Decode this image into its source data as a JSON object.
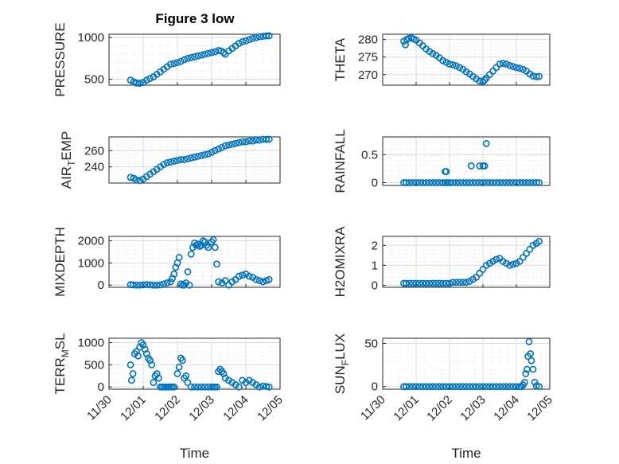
{
  "figure_title": "Figure 3 low",
  "colors": {
    "marker": "#0072BD",
    "grid": "#dcdcdc",
    "axis": "#262626"
  },
  "chart_data": [
    {
      "type": "scatter",
      "id": "pressure",
      "ylabel": "PRESSURE",
      "xlabel": "",
      "ylim": [
        430,
        1040
      ],
      "yticks": [
        500,
        1000
      ],
      "ytick_labels": [
        "500",
        "1000"
      ],
      "x": [
        0.63,
        0.72,
        0.8,
        0.9,
        1.0,
        1.1,
        1.2,
        1.3,
        1.4,
        1.5,
        1.6,
        1.7,
        1.8,
        1.9,
        2.0,
        2.1,
        2.2,
        2.3,
        2.4,
        2.5,
        2.6,
        2.7,
        2.8,
        2.9,
        3.0,
        3.1,
        3.2,
        3.28,
        3.35,
        3.4,
        3.5,
        3.6,
        3.7,
        3.8,
        3.9,
        4.0,
        4.1,
        4.2,
        4.3,
        4.4,
        4.5,
        4.6,
        4.68
      ],
      "y": [
        490,
        470,
        455,
        452,
        462,
        490,
        510,
        530,
        560,
        590,
        620,
        650,
        680,
        690,
        700,
        715,
        735,
        750,
        760,
        770,
        780,
        790,
        800,
        810,
        820,
        830,
        845,
        840,
        820,
        800,
        840,
        870,
        900,
        930,
        950,
        960,
        975,
        990,
        1000,
        1010,
        1015,
        1020,
        1022
      ]
    },
    {
      "type": "scatter",
      "id": "theta",
      "ylabel": "THETA",
      "xlabel": "",
      "ylim": [
        267,
        281.5
      ],
      "yticks": [
        270,
        275,
        280
      ],
      "ytick_labels": [
        "270",
        "275",
        "280"
      ],
      "x": [
        0.63,
        0.68,
        0.72,
        0.78,
        0.85,
        0.92,
        1.0,
        1.1,
        1.2,
        1.3,
        1.4,
        1.5,
        1.6,
        1.7,
        1.8,
        1.9,
        2.0,
        2.1,
        2.2,
        2.3,
        2.4,
        2.5,
        2.6,
        2.7,
        2.8,
        2.9,
        3.0,
        3.05,
        3.1,
        3.2,
        3.3,
        3.4,
        3.5,
        3.6,
        3.7,
        3.8,
        3.9,
        4.0,
        4.1,
        4.2,
        4.3,
        4.4,
        4.5,
        4.6,
        4.68
      ],
      "y": [
        279.5,
        278.5,
        280.0,
        280.3,
        280.5,
        280.2,
        279.8,
        279.0,
        278.2,
        277.3,
        276.6,
        276.0,
        275.5,
        274.8,
        274.0,
        273.5,
        273.0,
        272.8,
        272.5,
        272.0,
        271.5,
        270.8,
        270.2,
        269.5,
        268.8,
        268.2,
        268.0,
        268.5,
        269.0,
        270.0,
        271.0,
        272.0,
        273.0,
        273.2,
        273.0,
        272.6,
        272.3,
        272.0,
        271.8,
        271.5,
        271.0,
        270.2,
        269.6,
        269.4,
        269.5
      ]
    },
    {
      "type": "scatter",
      "id": "airtemp",
      "ylabel": "AIR_TEMP",
      "xlabel": "",
      "ylim": [
        220,
        277
      ],
      "yticks": [
        240,
        260
      ],
      "ytick_labels": [
        "240",
        "260"
      ],
      "x": [
        0.63,
        0.72,
        0.8,
        0.9,
        1.0,
        1.1,
        1.2,
        1.3,
        1.4,
        1.5,
        1.6,
        1.7,
        1.8,
        1.9,
        2.0,
        2.1,
        2.2,
        2.3,
        2.4,
        2.5,
        2.6,
        2.7,
        2.8,
        2.9,
        3.0,
        3.1,
        3.2,
        3.3,
        3.4,
        3.5,
        3.6,
        3.7,
        3.8,
        3.9,
        4.0,
        4.1,
        4.2,
        4.3,
        4.4,
        4.5,
        4.6,
        4.68
      ],
      "y": [
        227,
        226,
        224,
        223,
        225,
        228,
        231,
        234,
        237,
        240,
        243,
        245,
        246,
        247,
        248,
        249,
        249,
        250,
        251,
        252,
        253,
        254,
        255,
        256,
        258,
        260,
        262,
        264,
        266,
        267,
        268,
        269,
        270,
        271,
        271,
        272,
        272,
        273,
        273,
        274,
        274,
        274
      ]
    },
    {
      "type": "scatter",
      "id": "rainfall",
      "ylabel": "RAINFALL",
      "xlabel": "",
      "ylim": [
        -0.05,
        0.82
      ],
      "yticks": [
        0,
        0.5
      ],
      "ytick_labels": [
        "0",
        "0.5"
      ],
      "x": [
        0.63,
        0.7,
        0.8,
        0.9,
        1.0,
        1.1,
        1.2,
        1.3,
        1.4,
        1.5,
        1.6,
        1.7,
        1.8,
        1.88,
        1.93,
        2.0,
        2.1,
        2.2,
        2.3,
        2.4,
        2.5,
        2.6,
        2.7,
        2.8,
        2.9,
        3.0,
        3.1,
        3.2,
        3.3,
        3.4,
        3.5,
        3.6,
        3.7,
        3.8,
        3.9,
        4.0,
        4.1,
        4.2,
        4.3,
        4.4,
        4.5,
        4.6,
        4.68,
        1.87,
        1.9,
        2.65,
        2.9,
        3.0,
        3.05,
        3.1
      ],
      "y": [
        0,
        0,
        0,
        0,
        0,
        0,
        0,
        0,
        0,
        0,
        0,
        0,
        0,
        0,
        0,
        0,
        0,
        0,
        0,
        0,
        0,
        0,
        0,
        0,
        0,
        0,
        0,
        0,
        0,
        0,
        0,
        0,
        0,
        0,
        0,
        0,
        0,
        0,
        0,
        0,
        0,
        0,
        0,
        0.2,
        0.2,
        0.3,
        0.3,
        0.3,
        0.3,
        0.7
      ]
    },
    {
      "type": "scatter",
      "id": "mixdepth",
      "ylabel": "MIXDEPTH",
      "xlabel": "",
      "ylim": [
        -100,
        2200
      ],
      "yticks": [
        0,
        1000,
        2000
      ],
      "ytick_labels": [
        "0",
        "1000",
        "2000"
      ],
      "x": [
        0.63,
        0.7,
        0.8,
        0.9,
        1.0,
        1.1,
        1.2,
        1.3,
        1.4,
        1.5,
        1.6,
        1.7,
        1.8,
        1.85,
        1.9,
        1.95,
        2.0,
        2.05,
        2.1,
        2.15,
        2.2,
        2.25,
        2.3,
        2.35,
        2.4,
        2.45,
        2.5,
        2.55,
        2.6,
        2.65,
        2.7,
        2.75,
        2.8,
        2.85,
        2.9,
        3.0,
        3.05,
        3.1,
        3.15,
        3.2,
        3.3,
        3.4,
        3.5,
        3.6,
        3.7,
        3.8,
        3.9,
        4.0,
        4.1,
        4.2,
        4.3,
        4.4,
        4.5,
        4.6,
        4.68
      ],
      "y": [
        20,
        10,
        0,
        0,
        10,
        20,
        10,
        0,
        0,
        10,
        50,
        100,
        150,
        300,
        500,
        800,
        1000,
        1250,
        50,
        0,
        0,
        100,
        600,
        0,
        1400,
        1700,
        1900,
        1800,
        1850,
        1750,
        1800,
        2000,
        1950,
        1800,
        1700,
        1950,
        2050,
        1700,
        950,
        150,
        100,
        200,
        0,
        150,
        250,
        400,
        450,
        500,
        400,
        350,
        250,
        200,
        150,
        200,
        250
      ]
    },
    {
      "type": "scatter",
      "id": "h2omixra",
      "ylabel": "H2OMIXRA",
      "xlabel": "",
      "ylim": [
        -0.1,
        2.45
      ],
      "yticks": [
        0,
        1,
        2
      ],
      "ytick_labels": [
        "0",
        "1",
        "2"
      ],
      "x": [
        0.63,
        0.7,
        0.8,
        0.9,
        1.0,
        1.1,
        1.2,
        1.3,
        1.4,
        1.5,
        1.6,
        1.7,
        1.8,
        1.9,
        2.0,
        2.1,
        2.2,
        2.3,
        2.4,
        2.5,
        2.6,
        2.7,
        2.8,
        2.9,
        3.0,
        3.1,
        3.2,
        3.3,
        3.4,
        3.5,
        3.6,
        3.7,
        3.8,
        3.9,
        4.0,
        4.1,
        4.2,
        4.3,
        4.4,
        4.5,
        4.6,
        4.68
      ],
      "y": [
        0.1,
        0.1,
        0.1,
        0.1,
        0.1,
        0.1,
        0.1,
        0.1,
        0.1,
        0.1,
        0.1,
        0.1,
        0.1,
        0.1,
        0.1,
        0.15,
        0.15,
        0.15,
        0.15,
        0.15,
        0.2,
        0.3,
        0.4,
        0.6,
        0.8,
        1.0,
        1.1,
        1.2,
        1.3,
        1.35,
        1.2,
        1.1,
        1.0,
        1.05,
        1.1,
        1.2,
        1.4,
        1.6,
        1.8,
        2.0,
        2.1,
        2.2
      ]
    },
    {
      "type": "scatter",
      "id": "terrmsl",
      "ylabel": "TERR_MSL",
      "xlabel": "Time",
      "xlim": [
        0,
        5
      ],
      "xticks": [
        0,
        1,
        2,
        3,
        4,
        5
      ],
      "xtick_labels": [
        "11/30",
        "12/01",
        "12/02",
        "12/03",
        "12/04",
        "12/05"
      ],
      "ylim": [
        -50,
        1100
      ],
      "yticks": [
        0,
        500,
        1000
      ],
      "ytick_labels": [
        "0",
        "500",
        "1000"
      ],
      "x": [
        0.63,
        0.66,
        0.7,
        0.75,
        0.8,
        0.85,
        0.9,
        0.95,
        1.0,
        1.05,
        1.1,
        1.15,
        1.2,
        1.25,
        1.3,
        1.35,
        1.4,
        1.45,
        1.5,
        1.55,
        1.6,
        1.65,
        1.7,
        1.75,
        1.8,
        1.85,
        1.9,
        2.0,
        2.05,
        2.1,
        2.15,
        2.2,
        2.25,
        2.3,
        2.4,
        2.5,
        2.6,
        2.7,
        2.8,
        2.9,
        3.0,
        3.05,
        3.1,
        3.15,
        3.2,
        3.25,
        3.3,
        3.35,
        3.4,
        3.5,
        3.6,
        3.7,
        3.8,
        3.9,
        4.0,
        4.1,
        4.2,
        4.3,
        4.4,
        4.5,
        4.6,
        4.68
      ],
      "y": [
        500,
        150,
        300,
        750,
        800,
        700,
        900,
        1000,
        950,
        850,
        750,
        650,
        600,
        500,
        100,
        250,
        300,
        200,
        0,
        0,
        0,
        0,
        0,
        0,
        0,
        0,
        0,
        300,
        450,
        650,
        600,
        200,
        250,
        100,
        0,
        0,
        0,
        0,
        0,
        0,
        0,
        0,
        0,
        0,
        350,
        400,
        350,
        300,
        200,
        150,
        100,
        50,
        0,
        150,
        100,
        150,
        100,
        50,
        0,
        20,
        10,
        0
      ]
    },
    {
      "type": "scatter",
      "id": "sunflux",
      "ylabel": "SUN_FLUX",
      "xlabel": "Time",
      "xlim": [
        0,
        5
      ],
      "xticks": [
        0,
        1,
        2,
        3,
        4,
        5
      ],
      "xtick_labels": [
        "11/30",
        "12/01",
        "12/02",
        "12/03",
        "12/04",
        "12/05"
      ],
      "ylim": [
        -3,
        56
      ],
      "yticks": [
        0,
        50
      ],
      "ytick_labels": [
        "0",
        "50"
      ],
      "x": [
        0.63,
        0.7,
        0.8,
        0.9,
        1.0,
        1.1,
        1.2,
        1.3,
        1.4,
        1.5,
        1.6,
        1.7,
        1.8,
        1.9,
        2.0,
        2.1,
        2.2,
        2.3,
        2.4,
        2.5,
        2.6,
        2.7,
        2.8,
        2.9,
        3.0,
        3.1,
        3.2,
        3.3,
        3.4,
        3.5,
        3.6,
        3.7,
        3.8,
        3.9,
        4.0,
        4.1,
        4.15,
        4.2,
        4.25,
        4.28,
        4.32,
        4.35,
        4.38,
        4.42,
        4.45,
        4.5,
        4.55,
        4.6,
        4.68
      ],
      "y": [
        0,
        0,
        0,
        0,
        0,
        0,
        0,
        0,
        0,
        0,
        0,
        0,
        0,
        0,
        0,
        0,
        0,
        0,
        0,
        0,
        0,
        0,
        0,
        0,
        0,
        0,
        0,
        0,
        0,
        0,
        0,
        0,
        0,
        0,
        0,
        0,
        0,
        2,
        5,
        15,
        20,
        35,
        52,
        38,
        30,
        20,
        5,
        1,
        0
      ]
    }
  ]
}
